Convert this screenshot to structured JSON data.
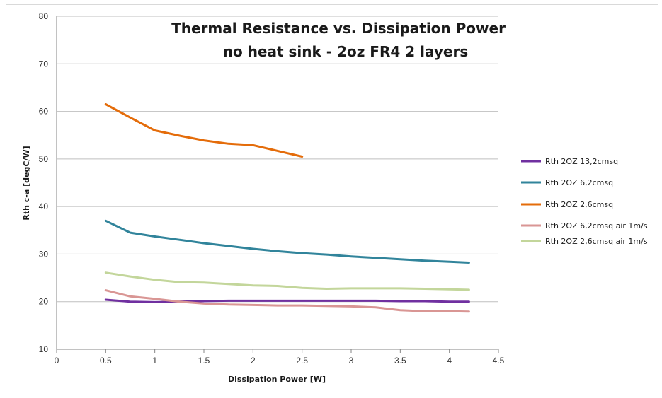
{
  "chart_data": {
    "type": "line",
    "title": [
      "Thermal Resistance vs. Dissipation Power",
      "no heat sink - 2oz FR4 2 layers"
    ],
    "xlabel": "Dissipation Power [W]",
    "ylabel": "Rth c-a [degC/W]",
    "xlim": [
      0,
      4.5
    ],
    "ylim": [
      10,
      80
    ],
    "xticks": [
      "0",
      "0.5",
      "1",
      "1.5",
      "2",
      "2.5",
      "3",
      "3.5",
      "4",
      "4.5"
    ],
    "yticks": [
      "10",
      "20",
      "30",
      "40",
      "50",
      "60",
      "70",
      "80"
    ],
    "grid": "horizontal",
    "legend_position": "right",
    "series": [
      {
        "name": "Rth 2OZ 13,2cmsq",
        "color": "#7030a0",
        "x": [
          0.5,
          0.75,
          1.0,
          1.25,
          1.5,
          1.75,
          2.0,
          2.25,
          2.5,
          2.75,
          3.0,
          3.25,
          3.5,
          3.75,
          4.0,
          4.2
        ],
        "y": [
          20.4,
          20.0,
          19.9,
          20.0,
          20.1,
          20.2,
          20.2,
          20.2,
          20.2,
          20.2,
          20.2,
          20.2,
          20.1,
          20.1,
          20.0,
          20.0
        ]
      },
      {
        "name": "Rth 2OZ 6,2cmsq",
        "color": "#31849b",
        "x": [
          0.5,
          0.75,
          1.0,
          1.25,
          1.5,
          1.75,
          2.0,
          2.25,
          2.5,
          2.75,
          3.0,
          3.25,
          3.5,
          3.75,
          4.0,
          4.2
        ],
        "y": [
          37.0,
          34.5,
          33.7,
          33.0,
          32.3,
          31.7,
          31.1,
          30.6,
          30.2,
          29.9,
          29.5,
          29.2,
          28.9,
          28.6,
          28.4,
          28.2
        ]
      },
      {
        "name": "Rth 2OZ 2,6cmsq",
        "color": "#e46c0a",
        "x": [
          0.5,
          0.75,
          1.0,
          1.25,
          1.5,
          1.75,
          2.0,
          2.25,
          2.5
        ],
        "y": [
          61.5,
          58.7,
          56.0,
          54.9,
          53.9,
          53.2,
          52.9,
          51.7,
          50.5
        ]
      },
      {
        "name": "Rth 2OZ 6,2cmsq air 1m/s",
        "color": "#d99694",
        "x": [
          0.5,
          0.75,
          1.0,
          1.25,
          1.5,
          1.75,
          2.0,
          2.25,
          2.5,
          2.75,
          3.0,
          3.25,
          3.5,
          3.75,
          4.0,
          4.2
        ],
        "y": [
          22.4,
          21.1,
          20.6,
          20.0,
          19.6,
          19.4,
          19.3,
          19.2,
          19.2,
          19.1,
          19.0,
          18.8,
          18.2,
          18.0,
          18.0,
          17.9
        ]
      },
      {
        "name": "Rth 2OZ 2,6cmsq air 1m/s",
        "color": "#c3d69b",
        "x": [
          0.5,
          0.75,
          1.0,
          1.25,
          1.5,
          1.75,
          2.0,
          2.25,
          2.5,
          2.75,
          3.0,
          3.25,
          3.5,
          3.75,
          4.0,
          4.2
        ],
        "y": [
          26.1,
          25.3,
          24.6,
          24.1,
          24.0,
          23.7,
          23.4,
          23.3,
          22.9,
          22.7,
          22.8,
          22.8,
          22.8,
          22.7,
          22.6,
          22.5
        ]
      }
    ]
  }
}
